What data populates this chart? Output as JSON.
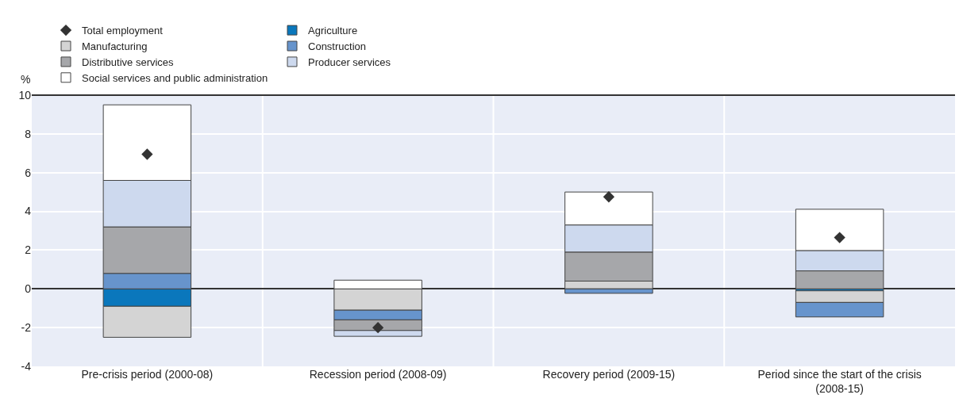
{
  "chart_data": {
    "type": "bar",
    "stacked": true,
    "ylabel": "%",
    "categories": [
      "Pre-crisis period (2000-08)",
      "Recession period (2008-09)",
      "Recovery period (2009-15)",
      "Period since the start of the crisis (2008-15)"
    ],
    "series": [
      {
        "name": "Agriculture",
        "color": "#0a77bc",
        "values": [
          -0.9,
          null,
          null,
          -0.1
        ]
      },
      {
        "name": "Manufacturing",
        "color": "#d4d4d4",
        "values": [
          -1.6,
          -1.1,
          0.4,
          -0.6
        ]
      },
      {
        "name": "Construction",
        "color": "#6794cc",
        "values": [
          0.8,
          -0.5,
          -0.23,
          -0.75
        ]
      },
      {
        "name": "Distributive services",
        "color": "#a6a7aa",
        "values": [
          2.4,
          -0.55,
          1.5,
          0.93
        ]
      },
      {
        "name": "Producer services",
        "color": "#cdd9ee",
        "values": [
          2.4,
          -0.3,
          1.4,
          1.05
        ]
      },
      {
        "name": "Social services and public administration",
        "color": "#ffffff",
        "values": [
          3.9,
          0.45,
          1.7,
          2.13
        ]
      },
      {
        "name": "Total employment",
        "type": "scatter",
        "marker": "diamond",
        "color": "#333333",
        "values": [
          6.95,
          -2.0,
          4.75,
          2.65
        ]
      }
    ],
    "ylim": [
      -4,
      10
    ],
    "yticks": [
      -4,
      -2,
      0,
      2,
      4,
      6,
      8,
      10
    ],
    "grid": "y",
    "legend": "top"
  }
}
